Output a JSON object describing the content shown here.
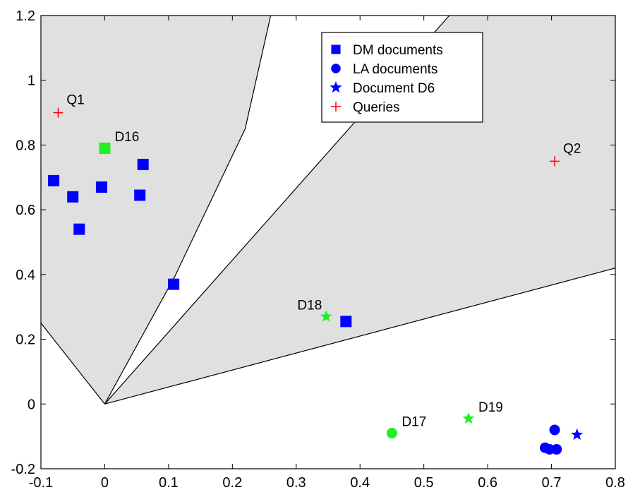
{
  "chart_data": {
    "type": "scatter",
    "xlim": [
      -0.1,
      0.8
    ],
    "ylim": [
      -0.2,
      1.2
    ],
    "x_ticks": [
      "-0.1",
      "0",
      "0.1",
      "0.2",
      "0.3",
      "0.4",
      "0.5",
      "0.6",
      "0.7",
      "0.8"
    ],
    "y_ticks": [
      "-0.2",
      "0",
      "0.2",
      "0.4",
      "0.6",
      "0.8",
      "1",
      "1.2"
    ],
    "grid": false,
    "legend_position": "top-center",
    "legend": [
      {
        "label": "DM documents",
        "marker": "square",
        "color": "#0000ff"
      },
      {
        "label": "LA documents",
        "marker": "circle",
        "color": "#0000ff"
      },
      {
        "label": "Document D6",
        "marker": "star",
        "color": "#0000ff"
      },
      {
        "label": "Queries",
        "marker": "plus",
        "color": "#ff0000"
      }
    ],
    "shaded_regions": [
      {
        "name": "Q1 region",
        "fill": "#e0e0e0",
        "polygon": [
          [
            -0.1,
            0.25
          ],
          [
            0,
            0
          ],
          [
            0.11,
            0.395
          ],
          [
            0.22,
            0.85
          ],
          [
            0.26,
            1.2
          ],
          [
            -0.1,
            1.2
          ]
        ]
      },
      {
        "name": "Q2 region",
        "fill": "#e0e0e0",
        "polygon": [
          [
            0,
            0
          ],
          [
            0.8,
            0.42
          ],
          [
            0.8,
            1.2
          ],
          [
            0.54,
            1.2
          ]
        ]
      }
    ],
    "boundary_lines": [
      {
        "points": [
          [
            -0.1,
            0.25
          ],
          [
            0,
            0
          ]
        ]
      },
      {
        "points": [
          [
            0,
            0
          ],
          [
            0.11,
            0.395
          ],
          [
            0.22,
            0.85
          ],
          [
            0.26,
            1.2
          ]
        ]
      },
      {
        "points": [
          [
            0,
            0
          ],
          [
            0.54,
            1.2
          ]
        ]
      },
      {
        "points": [
          [
            0,
            0
          ],
          [
            0.8,
            0.42
          ]
        ]
      }
    ],
    "series": [
      {
        "name": "DM documents",
        "marker": "square",
        "color": "#0000ff",
        "points": [
          {
            "x": -0.08,
            "y": 0.69
          },
          {
            "x": -0.05,
            "y": 0.64
          },
          {
            "x": -0.04,
            "y": 0.54
          },
          {
            "x": -0.005,
            "y": 0.67
          },
          {
            "x": 0.055,
            "y": 0.645
          },
          {
            "x": 0.06,
            "y": 0.74
          },
          {
            "x": 0.108,
            "y": 0.37
          },
          {
            "x": 0.378,
            "y": 0.255
          }
        ]
      },
      {
        "name": "LA documents",
        "marker": "circle",
        "color": "#0000ff",
        "points": [
          {
            "x": 0.69,
            "y": -0.135
          },
          {
            "x": 0.697,
            "y": -0.14
          },
          {
            "x": 0.705,
            "y": -0.08
          },
          {
            "x": 0.708,
            "y": -0.14
          }
        ]
      },
      {
        "name": "Document D6",
        "marker": "star",
        "color": "#0000ff",
        "points": [
          {
            "x": 0.74,
            "y": -0.095
          }
        ]
      },
      {
        "name": "Queries",
        "marker": "plus",
        "color": "#ff0000",
        "points": [
          {
            "x": -0.073,
            "y": 0.9,
            "label": "Q1"
          },
          {
            "x": 0.705,
            "y": 0.75,
            "label": "Q2"
          }
        ]
      },
      {
        "name": "Highlighted documents",
        "color": "#22ee22",
        "points": [
          {
            "x": 0.0,
            "y": 0.79,
            "label": "D16",
            "marker": "square"
          },
          {
            "x": 0.45,
            "y": -0.09,
            "label": "D17",
            "marker": "circle"
          },
          {
            "x": 0.347,
            "y": 0.27,
            "label": "D18",
            "marker": "star"
          },
          {
            "x": 0.57,
            "y": -0.045,
            "label": "D19",
            "marker": "star"
          }
        ]
      }
    ]
  }
}
